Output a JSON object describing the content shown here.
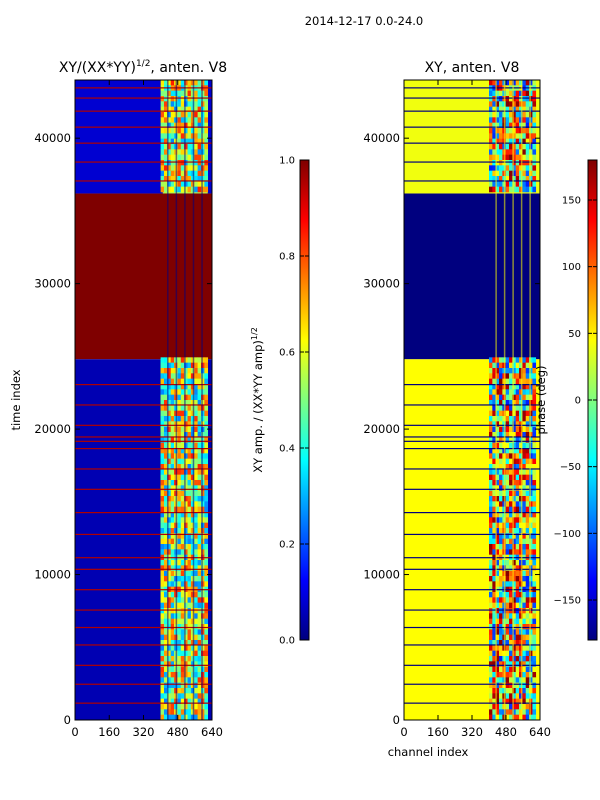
{
  "suptitle": "2014-12-17 0.0-24.0",
  "colors": {
    "jet": [
      "#00007f",
      "#0000ff",
      "#007fff",
      "#00ffff",
      "#7fff7f",
      "#ffff00",
      "#ff7f00",
      "#ff0000",
      "#7f0000"
    ]
  },
  "chart_data": [
    {
      "type": "heatmap",
      "title": "XY/(XX*YY)^1/2, anten. V8",
      "title_main": "XY/(XX*YY)",
      "title_sup": "1/2",
      "title_tail": ", anten. V8",
      "xlabel": "",
      "ylabel": "time index",
      "xlim": [
        0,
        640
      ],
      "ylim": [
        0,
        44000
      ],
      "xticks": [
        0,
        160,
        320,
        480,
        640
      ],
      "yticks": [
        0,
        10000,
        20000,
        30000,
        40000
      ],
      "color_scale": "jet",
      "colorbar": {
        "label_main": "XY amp. / (XX*YY amp)",
        "label_sup": "1/2",
        "range": [
          0.0,
          1.0
        ],
        "ticks": [
          "0.0",
          "0.2",
          "0.4",
          "0.6",
          "0.8",
          "1.0"
        ],
        "tick_values": [
          0.0,
          0.2,
          0.4,
          0.6,
          0.8,
          1.0
        ]
      },
      "regions": [
        {
          "name": "flagged-block",
          "y0": 24800,
          "y1": 36200,
          "x0": 0,
          "x1": 640,
          "value": 1.0
        },
        {
          "name": "low-coherence-background",
          "y0": 0,
          "y1": 24800,
          "x0": 0,
          "x1": 640,
          "value": 0.05
        },
        {
          "name": "high-coherence-band",
          "y0": 0,
          "y1": 24800,
          "x0": 400,
          "x1": 620,
          "value": 0.55
        },
        {
          "name": "upper-background",
          "y0": 36200,
          "y1": 44000,
          "x0": 0,
          "x1": 640,
          "value": 0.08
        },
        {
          "name": "upper-band",
          "y0": 36200,
          "y1": 44000,
          "x0": 410,
          "x1": 620,
          "value": 0.55
        }
      ]
    },
    {
      "type": "heatmap",
      "title": "XY, anten. V8",
      "xlabel": "channel index",
      "ylabel": "",
      "xlim": [
        0,
        640
      ],
      "ylim": [
        0,
        44000
      ],
      "xticks": [
        0,
        160,
        320,
        480,
        640
      ],
      "yticks": [
        0,
        10000,
        20000,
        30000,
        40000
      ],
      "color_scale": "jet",
      "colorbar": {
        "label": "phase (deg)",
        "range": [
          -180,
          180
        ],
        "ticks": [
          "−150",
          "−100",
          "−50",
          "0",
          "50",
          "100",
          "150"
        ],
        "tick_values": [
          -150,
          -100,
          -50,
          0,
          50,
          100,
          150
        ]
      },
      "regions": [
        {
          "name": "flagged-block",
          "y0": 24800,
          "y1": 36200,
          "x0": 0,
          "x1": 640,
          "value": -180
        },
        {
          "name": "background",
          "y0": 0,
          "y1": 24800,
          "x0": 0,
          "x1": 640,
          "value": 45
        },
        {
          "name": "variable-phase-band",
          "y0": 0,
          "y1": 24800,
          "x0": 400,
          "x1": 620,
          "value": 120
        },
        {
          "name": "upper-background",
          "y0": 36200,
          "y1": 44000,
          "x0": 0,
          "x1": 640,
          "value": 40
        }
      ]
    }
  ]
}
